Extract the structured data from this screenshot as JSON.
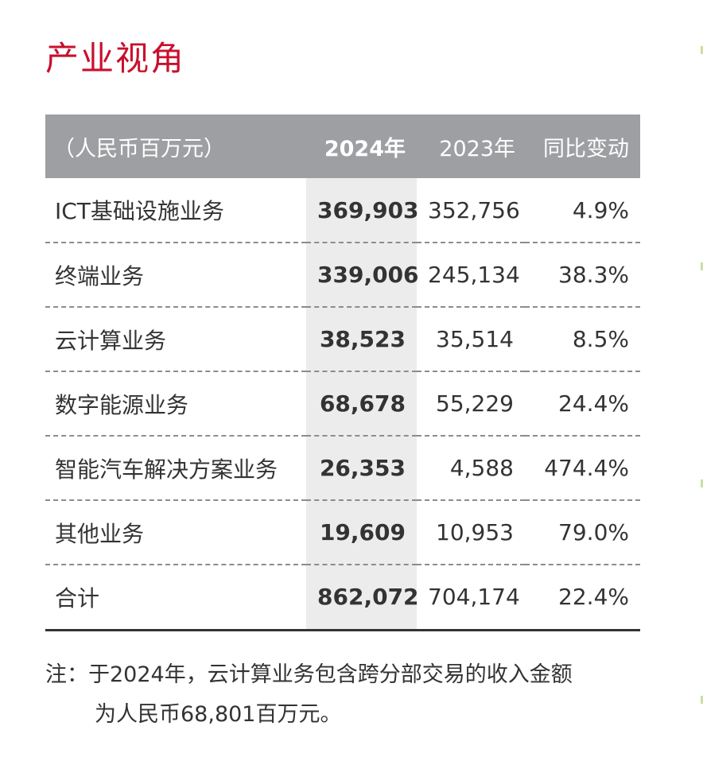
{
  "title": "产业视角",
  "table": {
    "headers": {
      "label": "（人民币百万元）",
      "y2024": "2024年",
      "y2023": "2023年",
      "change": "同比变动"
    },
    "rows": [
      {
        "label": "ICT基础设施业务",
        "y2024": "369,903",
        "y2023": "352,756",
        "change": "4.9%"
      },
      {
        "label": "终端业务",
        "y2024": "339,006",
        "y2023": "245,134",
        "change": "38.3%"
      },
      {
        "label": "云计算业务",
        "y2024": "38,523",
        "y2023": "35,514",
        "change": "8.5%"
      },
      {
        "label": "数字能源业务",
        "y2024": "68,678",
        "y2023": "55,229",
        "change": "24.4%"
      },
      {
        "label": "智能汽车解决方案业务",
        "y2024": "26,353",
        "y2023": "4,588",
        "change": "474.4%"
      },
      {
        "label": "其他业务",
        "y2024": "19,609",
        "y2023": "10,953",
        "change": "79.0%"
      },
      {
        "label": "合计",
        "y2024": "862,072",
        "y2023": "704,174",
        "change": "22.4%"
      }
    ]
  },
  "note": {
    "line1": "注：于2024年，云计算业务包含跨分部交易的收入金额",
    "line2": "为人民币68,801百万元。"
  },
  "colors": {
    "title": "#c8102e",
    "header_bg": "#9d9fa2",
    "highlight_col_bg": "#ececec",
    "text": "#333333"
  }
}
